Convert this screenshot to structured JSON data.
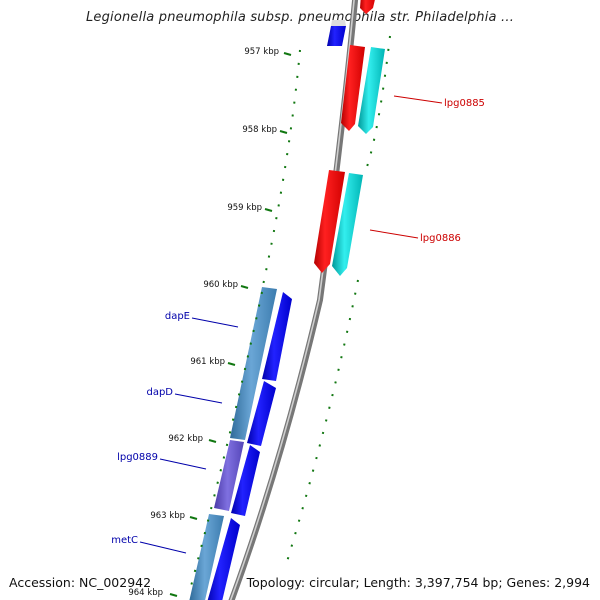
{
  "title": "Legionella pneumophila subsp. pneumophila str. Philadelphia ...",
  "footer": {
    "accession": "Accession: NC_002942",
    "topology": "Topology: circular; Length: 3,397,754 bp; Genes: 2,994"
  },
  "colors": {
    "forward_gene": "#ff0000",
    "forward_cds": "#00cccc",
    "reverse_gene": "#0000ff",
    "reverse_cds": "#4488bb",
    "reverse_cds_alt": "#6655cc",
    "tick": "#117711",
    "label_forward": "#cc0000",
    "label_reverse": "#0000aa"
  },
  "ticks": [
    {
      "label": "957 kbp"
    },
    {
      "label": "958 kbp"
    },
    {
      "label": "959 kbp"
    },
    {
      "label": "960 kbp"
    },
    {
      "label": "961 kbp"
    },
    {
      "label": "962 kbp"
    },
    {
      "label": "963 kbp"
    },
    {
      "label": "964 kbp"
    }
  ],
  "gene_labels": [
    {
      "name": "lpg0885",
      "strand": "forward"
    },
    {
      "name": "lpg0886",
      "strand": "forward"
    },
    {
      "name": "dapE",
      "strand": "reverse"
    },
    {
      "name": "dapD",
      "strand": "reverse"
    },
    {
      "name": "lpg0889",
      "strand": "reverse"
    },
    {
      "name": "metC",
      "strand": "reverse"
    }
  ]
}
